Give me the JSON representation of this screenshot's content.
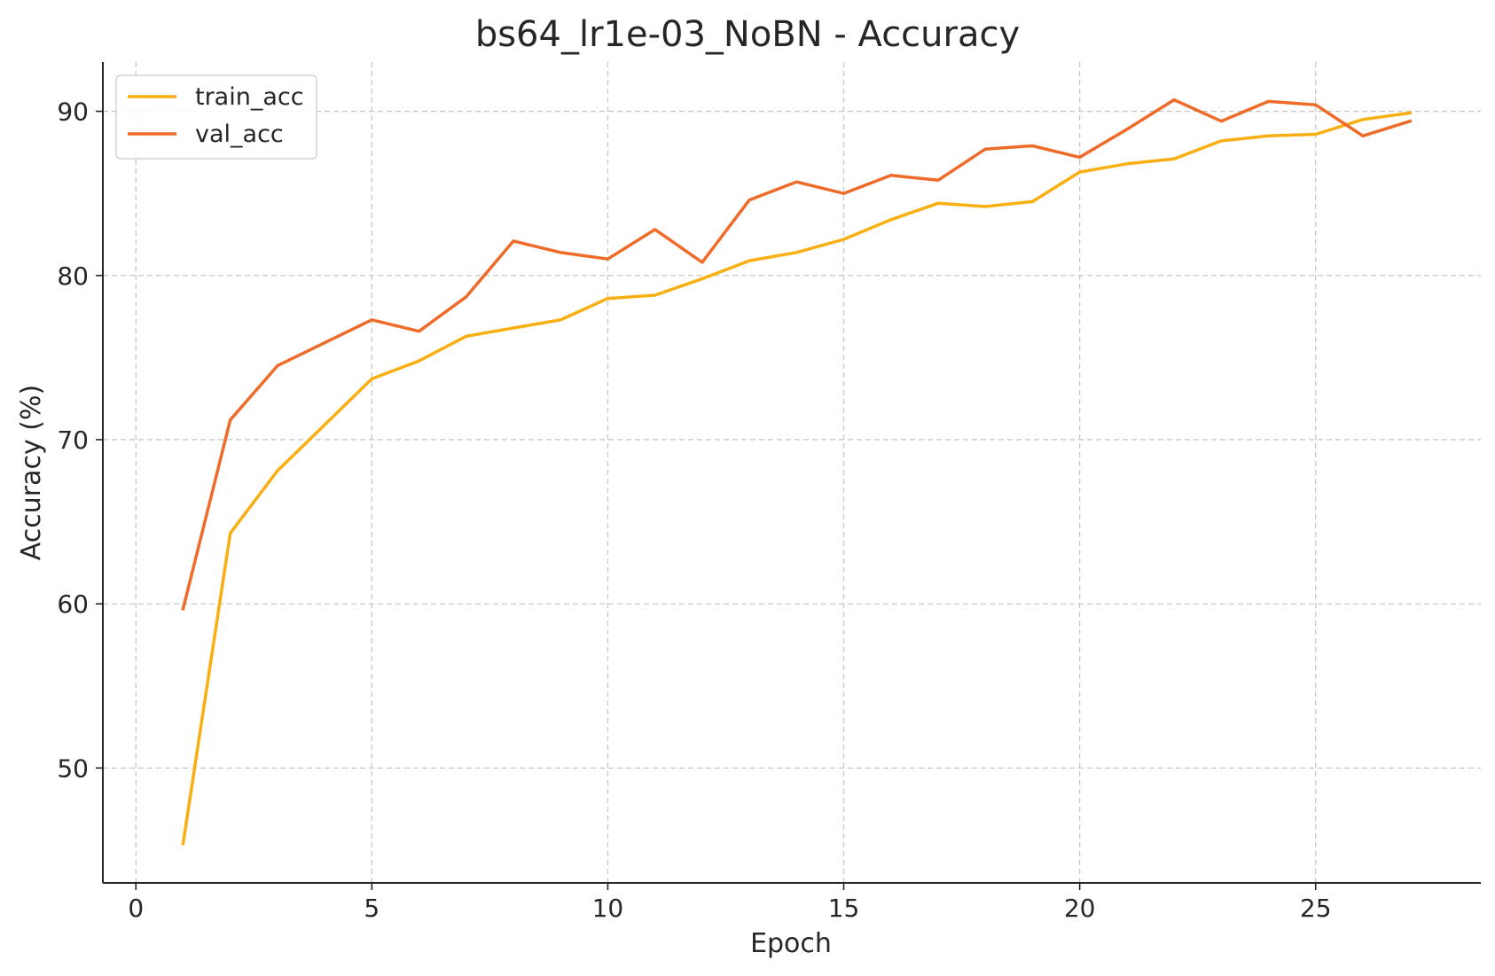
{
  "chart_data": {
    "type": "line",
    "title": "bs64_lr1e-03_NoBN - Accuracy",
    "xlabel": "Epoch",
    "ylabel": "Accuracy (%)",
    "xlim": [
      -0.7,
      28.5
    ],
    "ylim": [
      43,
      93
    ],
    "xticks": [
      0,
      5,
      10,
      15,
      20,
      25
    ],
    "yticks": [
      50,
      60,
      70,
      80,
      90
    ],
    "grid": true,
    "legend_position": "upper-left",
    "x": [
      1,
      2,
      3,
      4,
      5,
      6,
      7,
      8,
      9,
      10,
      11,
      12,
      13,
      14,
      15,
      16,
      17,
      18,
      19,
      20,
      21,
      22,
      23,
      24,
      25,
      26,
      27
    ],
    "series": [
      {
        "name": "train_acc",
        "color": "#F9AE12",
        "values": [
          45.4,
          64.3,
          68.1,
          70.9,
          73.7,
          74.8,
          76.3,
          76.8,
          77.3,
          78.6,
          78.8,
          79.8,
          80.9,
          81.4,
          82.2,
          83.4,
          84.4,
          84.2,
          84.5,
          86.3,
          86.8,
          87.1,
          88.2,
          88.5,
          88.6,
          89.5,
          89.9
        ]
      },
      {
        "name": "val_acc",
        "color": "#EE6B2A",
        "values": [
          59.7,
          71.2,
          74.5,
          75.9,
          77.3,
          76.6,
          78.7,
          82.1,
          81.4,
          81.0,
          82.8,
          80.8,
          84.6,
          85.7,
          85.0,
          86.1,
          85.8,
          87.7,
          87.9,
          87.2,
          88.9,
          90.7,
          89.4,
          90.6,
          90.4,
          88.5,
          89.4
        ]
      }
    ]
  }
}
